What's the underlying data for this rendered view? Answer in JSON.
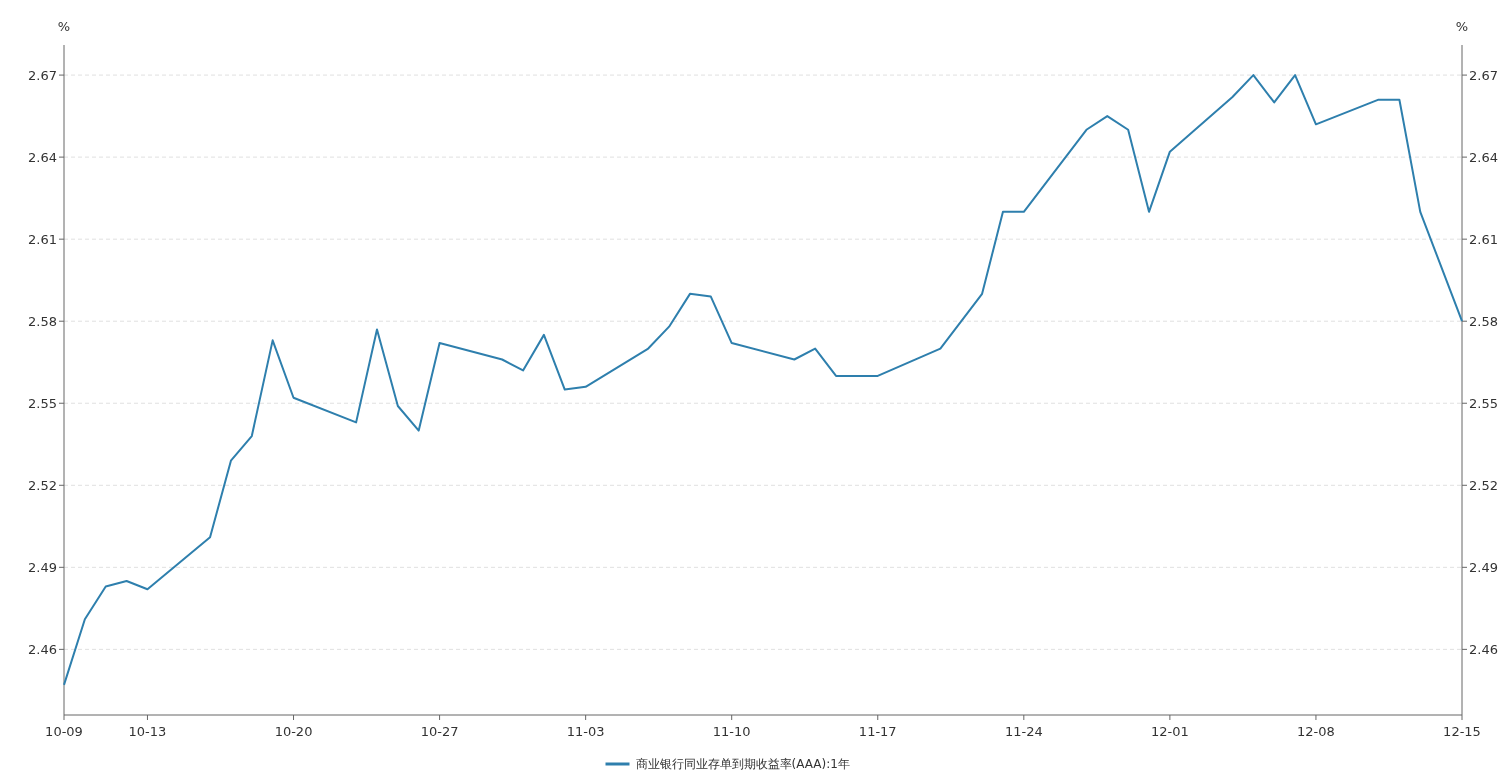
{
  "chart_data": {
    "type": "line",
    "ylabel": "%",
    "y2label": "%",
    "x": [
      "--10-09",
      "--10-10",
      "--10-11",
      "--10-12",
      "--10-13",
      "--10-16",
      "--10-17",
      "--10-18",
      "--10-19",
      "--10-20",
      "--10-23",
      "--10-24",
      "--10-25",
      "--10-26",
      "--10-27",
      "--10-30",
      "--10-31",
      "--11-01",
      "--11-02",
      "--11-03",
      "--11-06",
      "--11-07",
      "--11-08",
      "--11-09",
      "--11-10",
      "--11-13",
      "--11-14",
      "--11-15",
      "--11-16",
      "--11-17",
      "--11-20",
      "--11-22",
      "--11-23",
      "--11-24",
      "--11-27",
      "--11-28",
      "--11-29",
      "--11-30",
      "--12-01",
      "--12-04",
      "--12-05",
      "--12-06",
      "--12-07",
      "--12-08",
      "--12-11",
      "--12-12",
      "--12-13",
      "--12-15"
    ],
    "series": [
      {
        "name": "商业银行同业存单到期收益率(AAA):1年",
        "color": "#2e7fad",
        "values": [
          2.447,
          2.471,
          2.483,
          2.485,
          2.482,
          2.501,
          2.529,
          2.538,
          2.573,
          2.552,
          2.543,
          2.577,
          2.549,
          2.54,
          2.572,
          2.566,
          2.562,
          2.575,
          2.555,
          2.556,
          2.57,
          2.578,
          2.59,
          2.589,
          2.572,
          2.566,
          2.57,
          2.56,
          2.56,
          2.56,
          2.57,
          2.59,
          2.62,
          2.62,
          2.65,
          2.655,
          2.65,
          2.62,
          2.642,
          2.662,
          2.67,
          2.66,
          2.67,
          2.652,
          2.661,
          2.661,
          2.62,
          2.58
        ]
      }
    ],
    "xlim": [
      "--10-09",
      "--12-15"
    ],
    "xticks": [
      {
        "value": "--10-09",
        "label": "10-09"
      },
      {
        "value": "--10-13",
        "label": "10-13"
      },
      {
        "value": "--10-20",
        "label": "10-20"
      },
      {
        "value": "--10-27",
        "label": "10-27"
      },
      {
        "value": "--11-03",
        "label": "11-03"
      },
      {
        "value": "--11-10",
        "label": "11-10"
      },
      {
        "value": "--11-17",
        "label": "11-17"
      },
      {
        "value": "--11-24",
        "label": "11-24"
      },
      {
        "value": "--12-01",
        "label": "12-01"
      },
      {
        "value": "--12-08",
        "label": "12-08"
      },
      {
        "value": "--12-15",
        "label": "12-15"
      }
    ],
    "ylim": [
      2.436,
      2.681
    ],
    "yticks": [
      2.46,
      2.49,
      2.52,
      2.55,
      2.58,
      2.61,
      2.64,
      2.67
    ],
    "y2lim": [
      2.436,
      2.681
    ],
    "y2ticks": [
      2.46,
      2.49,
      2.52,
      2.55,
      2.58,
      2.61,
      2.64,
      2.67
    ],
    "grid": "y",
    "legend": "bottom",
    "marker": "none",
    "line_style": "solid"
  }
}
